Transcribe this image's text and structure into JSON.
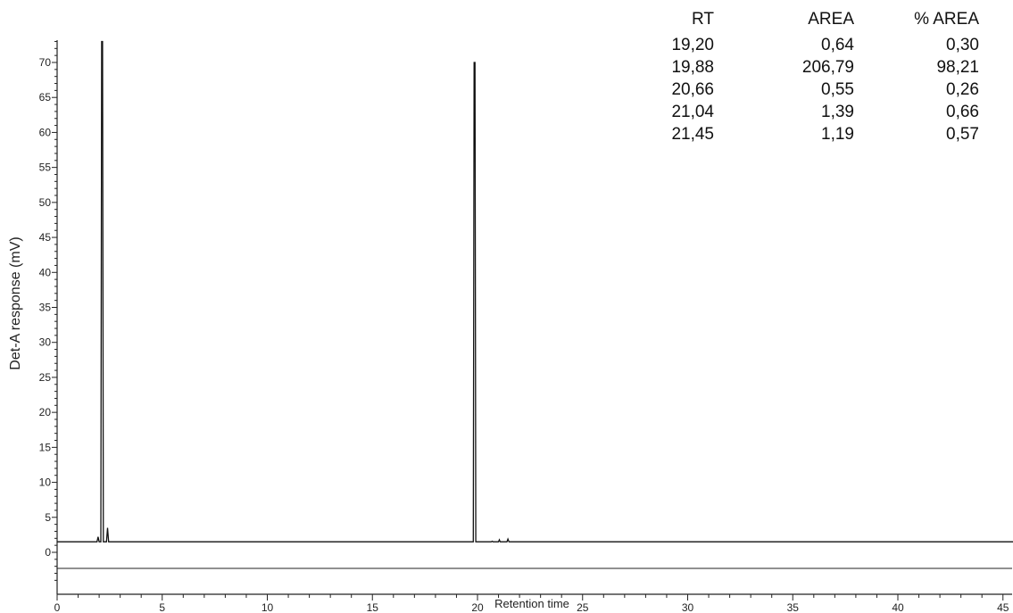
{
  "chart_data": {
    "type": "line",
    "title": "",
    "xlabel": "Retention time",
    "ylabel": "Det-A response (mV)",
    "xlim": [
      0,
      45.5
    ],
    "ylim": [
      -4,
      73
    ],
    "x_ticks": [
      "0",
      "5",
      "10",
      "15",
      "20",
      "25",
      "30",
      "35",
      "40",
      "45"
    ],
    "y_ticks": [
      "0",
      "5",
      "10",
      "15",
      "20",
      "25",
      "30",
      "35",
      "40",
      "45",
      "50",
      "55",
      "60",
      "65",
      "70"
    ],
    "baseline": 1.5,
    "reference_line": -2.3,
    "series": [
      {
        "values": [
          [
            0,
            1.5
          ],
          [
            1.9,
            1.5
          ],
          [
            1.95,
            2.2
          ],
          [
            2.0,
            1.5
          ],
          [
            2.08,
            1.5
          ],
          [
            2.12,
            73
          ],
          [
            2.16,
            73
          ],
          [
            2.2,
            1.5
          ],
          [
            2.35,
            1.5
          ],
          [
            2.4,
            3.5
          ],
          [
            2.45,
            1.5
          ],
          [
            19.8,
            1.5
          ],
          [
            19.84,
            70
          ],
          [
            19.88,
            70
          ],
          [
            19.92,
            1.5
          ],
          [
            20.66,
            1.5
          ],
          [
            20.7,
            1.6
          ],
          [
            20.74,
            1.5
          ],
          [
            21.0,
            1.5
          ],
          [
            21.04,
            1.8
          ],
          [
            21.08,
            1.5
          ],
          [
            21.4,
            1.5
          ],
          [
            21.45,
            1.9
          ],
          [
            21.5,
            1.5
          ],
          [
            45.5,
            1.5
          ]
        ]
      }
    ]
  },
  "table": {
    "headers": [
      "RT",
      "AREA",
      "% AREA"
    ],
    "rows": [
      [
        "19,20",
        "0,64",
        "0,30"
      ],
      [
        "19,88",
        "206,79",
        "98,21"
      ],
      [
        "20,66",
        "0,55",
        "0,26"
      ],
      [
        "21,04",
        "1,39",
        "0,66"
      ],
      [
        "21,45",
        "1,19",
        "0,57"
      ]
    ]
  }
}
